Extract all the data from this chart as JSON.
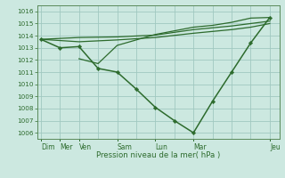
{
  "bg_color": "#cce8e0",
  "grid_color": "#a0c8c0",
  "line_color": "#2d6b2d",
  "ylim": [
    1005.5,
    1016.5
  ],
  "yticks": [
    1006,
    1007,
    1008,
    1009,
    1010,
    1011,
    1012,
    1013,
    1014,
    1015,
    1016
  ],
  "xlabel": "Pression niveau de la mer( hPa )",
  "day_labels": [
    "Dim",
    "Mer",
    "Ven",
    "Sam",
    "Lun",
    "Mar",
    "Jeu"
  ],
  "day_x": [
    0,
    1,
    2,
    4,
    6,
    8,
    12
  ],
  "xlim": [
    -0.2,
    12.5
  ],
  "line1_x": [
    0,
    2,
    4,
    6,
    8,
    10,
    11,
    12
  ],
  "line1_y": [
    1013.7,
    1013.85,
    1013.9,
    1014.05,
    1014.5,
    1014.8,
    1015.0,
    1015.2
  ],
  "line2_x": [
    0,
    2,
    4,
    6,
    8,
    10,
    11,
    12
  ],
  "line2_y": [
    1013.7,
    1013.5,
    1013.65,
    1013.85,
    1014.2,
    1014.5,
    1014.7,
    1015.0
  ],
  "line3_x": [
    2,
    3,
    4,
    6,
    8,
    9,
    10,
    11,
    12
  ],
  "line3_y": [
    1012.1,
    1011.7,
    1013.2,
    1014.1,
    1014.7,
    1014.85,
    1015.1,
    1015.45,
    1015.5
  ],
  "line4_x": [
    0,
    1,
    2,
    3,
    4,
    5,
    6,
    7,
    8,
    9,
    10,
    11,
    12
  ],
  "line4_y": [
    1013.7,
    1013.0,
    1013.1,
    1011.3,
    1011.0,
    1009.6,
    1008.1,
    1007.0,
    1006.0,
    1008.6,
    1011.0,
    1013.4,
    1015.5
  ]
}
